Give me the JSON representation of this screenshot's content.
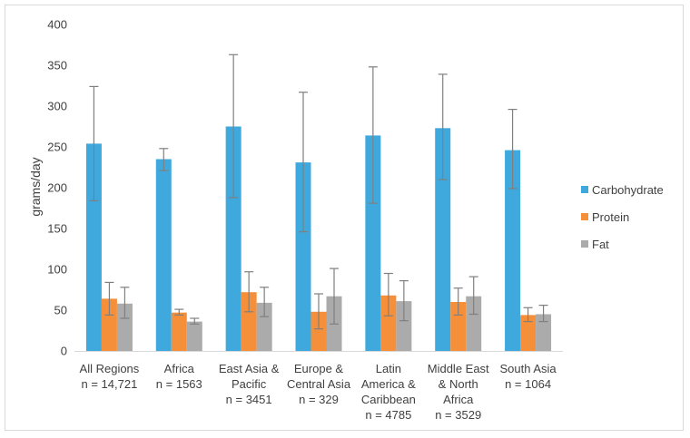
{
  "chart_data": {
    "type": "bar",
    "ylabel": "grams/day",
    "ylim": [
      0,
      400
    ],
    "yticks": [
      0,
      50,
      100,
      150,
      200,
      250,
      300,
      350,
      400
    ],
    "grid": false,
    "legend_position": "right",
    "categories": [
      [
        "All Regions",
        "n = 14,721"
      ],
      [
        "Africa",
        "n = 1563"
      ],
      [
        "East Asia &",
        "Pacific",
        "n = 3451"
      ],
      [
        "Europe &",
        "Central Asia",
        "n = 329"
      ],
      [
        "Latin",
        "America &",
        "Caribbean",
        "n = 4785"
      ],
      [
        "Middle East",
        "& North",
        "Africa",
        "n = 3529"
      ],
      [
        "South Asia",
        "n = 1064"
      ]
    ],
    "series": [
      {
        "name": "Carbohydrate",
        "color": "#3FA9DD",
        "values": [
          254,
          235,
          275,
          231,
          264,
          273,
          246
        ],
        "error_low": [
          184,
          221,
          188,
          146,
          181,
          210,
          199
        ],
        "error_high": [
          324,
          248,
          363,
          317,
          348,
          339,
          296
        ]
      },
      {
        "name": "Protein",
        "color": "#F58F3A",
        "values": [
          64,
          47,
          72,
          48,
          68,
          60,
          44
        ],
        "error_low": [
          44,
          44,
          48,
          27,
          43,
          44,
          36
        ],
        "error_high": [
          84,
          51,
          97,
          70,
          95,
          77,
          53
        ]
      },
      {
        "name": "Fat",
        "color": "#ABABAB",
        "values": [
          58,
          36,
          59,
          67,
          61,
          67,
          45
        ],
        "error_low": [
          40,
          33,
          42,
          33,
          37,
          45,
          36
        ],
        "error_high": [
          78,
          40,
          78,
          101,
          86,
          91,
          56
        ]
      }
    ]
  }
}
